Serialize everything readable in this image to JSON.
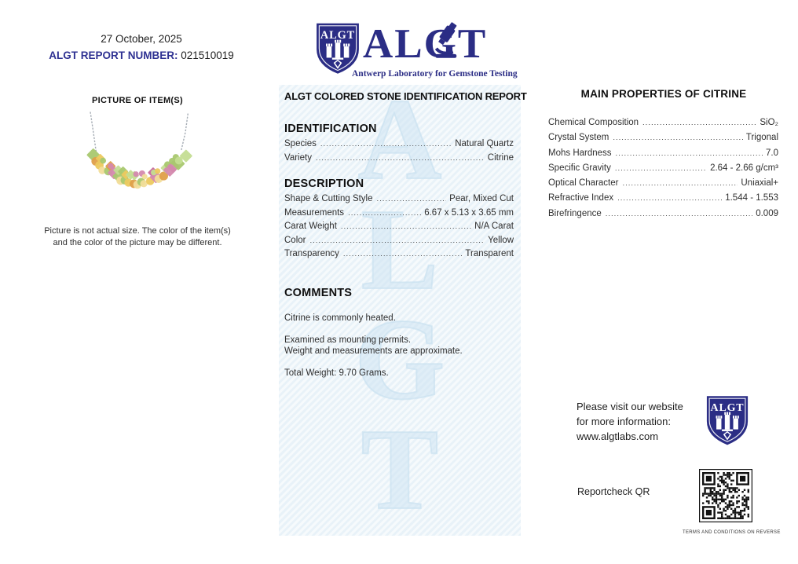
{
  "header": {
    "date": "27 October, 2025",
    "report_number_label": "ALGT REPORT NUMBER:",
    "report_number": "021510019",
    "logo": {
      "shield_text": "ALGT",
      "wordmark": "ALGT",
      "subtitle": "Antwerp Laboratory for Gemstone Testing"
    }
  },
  "picture_section": {
    "title": "PICTURE OF ITEM(S)",
    "disclaimer_line1": "Picture is not actual size. The color of the item(s)",
    "disclaimer_line2": "and the color of the picture may be different.",
    "gem_colors": [
      "#d489ae",
      "#c76c9e",
      "#a9c86f",
      "#c4dd92",
      "#ecc95f",
      "#df9f49",
      "#f2dd9a"
    ]
  },
  "report": {
    "title": "ALGT COLORED STONE IDENTIFICATION REPORT",
    "watermark": "ALGT",
    "sections": [
      {
        "heading": "IDENTIFICATION",
        "rows": [
          {
            "label": "Species",
            "value": "Natural Quartz"
          },
          {
            "label": "Variety",
            "value": "Citrine"
          }
        ]
      },
      {
        "heading": "DESCRIPTION",
        "rows": [
          {
            "label": "Shape & Cutting Style",
            "value": "Pear, Mixed Cut"
          },
          {
            "label": "Measurements",
            "value": "6.67 x 5.13 x 3.65 mm"
          },
          {
            "label": "Carat Weight",
            "value": "N/A Carat"
          },
          {
            "label": "Color",
            "value": "Yellow"
          },
          {
            "label": "Transparency",
            "value": "Transparent"
          }
        ]
      }
    ],
    "comments": {
      "heading": "COMMENTS",
      "paragraphs": [
        [
          "Citrine is commonly heated."
        ],
        [
          "Examined as mounting permits.",
          "Weight and measurements are approximate."
        ],
        [
          "Total Weight: 9.70 Grams."
        ]
      ]
    }
  },
  "properties": {
    "title": "MAIN PROPERTIES OF CITRINE",
    "rows": [
      {
        "label": "Chemical Composition",
        "value": "SiO₂"
      },
      {
        "label": "Crystal System",
        "value": "Trigonal"
      },
      {
        "label": "Mohs Hardness",
        "value": "7.0"
      },
      {
        "label": "Specific Gravity",
        "value": "2.64 - 2.66 g/cm³"
      },
      {
        "label": "Optical Character",
        "value": "Uniaxial+"
      },
      {
        "label": "Refractive Index",
        "value": "1.544 - 1.553"
      },
      {
        "label": "Birefringence",
        "value": "0.009"
      }
    ]
  },
  "footer": {
    "website_line1": "Please visit our website",
    "website_line2": "for more information:",
    "website_line3": "www.algtlabs.com",
    "qr_label": "Reportcheck QR",
    "terms": "TERMS AND CONDITIONS ON REVERSE"
  },
  "colors": {
    "brand_blue": "#2b2d85",
    "report_label_blue": "#2e3192",
    "panel_background": "#eef5fa",
    "watermark_blue": "#cde3f2",
    "text": "#222222"
  }
}
